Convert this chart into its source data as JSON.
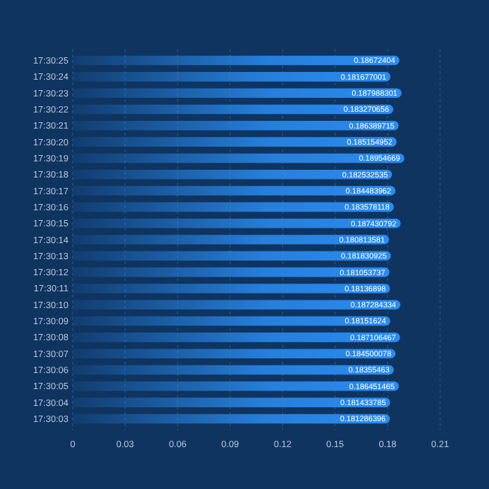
{
  "chart_data": {
    "type": "bar",
    "orientation": "horizontal",
    "categories": [
      "17:30:25",
      "17:30:24",
      "17:30:23",
      "17:30:22",
      "17:30:21",
      "17:30:20",
      "17:30:19",
      "17:30:18",
      "17:30:17",
      "17:30:16",
      "17:30:15",
      "17:30:14",
      "17:30:13",
      "17:30:12",
      "17:30:11",
      "17:30:10",
      "17:30:09",
      "17:30:08",
      "17:30:07",
      "17:30:06",
      "17:30:05",
      "17:30:04",
      "17:30:03"
    ],
    "values": [
      0.18672404,
      0.181677001,
      0.187988301,
      0.183270656,
      0.186389715,
      0.185154952,
      0.18954669,
      0.182532535,
      0.184483962,
      0.183578118,
      0.187430792,
      0.180813581,
      0.181830925,
      0.181053737,
      0.18136898,
      0.187284334,
      0.18151624,
      0.187106467,
      0.184500078,
      0.18355463,
      0.186451465,
      0.181433785,
      0.181286396
    ],
    "color": "#2a8cf0",
    "xlim": [
      0,
      0.21
    ],
    "xticks": [
      0,
      0.03,
      0.06,
      0.09,
      0.12,
      0.15,
      0.18,
      0.21
    ],
    "grid": "x",
    "data_labels": true
  }
}
